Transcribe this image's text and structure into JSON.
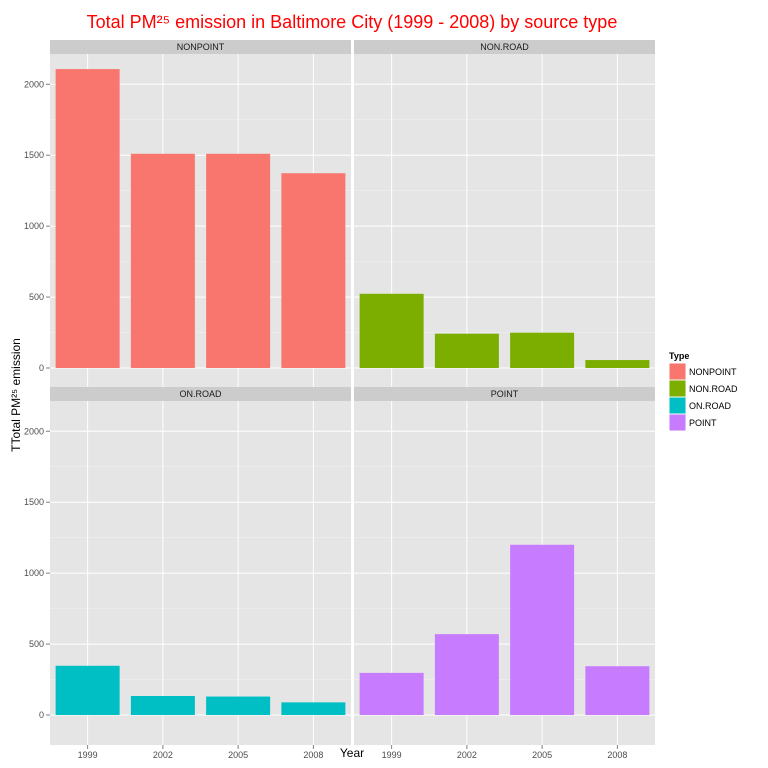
{
  "chart_data": {
    "type": "bar",
    "title": "Total PM²⁵ emission in Baltimore City (1999 - 2008) by source type",
    "title_color": "#ff0000",
    "xlabel": "Year",
    "ylabel": "TTotal PM²⁵ emission",
    "categories": [
      "1999",
      "2002",
      "2005",
      "2008"
    ],
    "ylim": [
      0,
      2250
    ],
    "yticks": [
      "0",
      "500",
      "1000",
      "1500",
      "2000"
    ],
    "grid": true,
    "facet_layout": "2x2",
    "legend": {
      "title": "Type",
      "placement": "right",
      "entries": [
        "NONPOINT",
        "NON.ROAD",
        "ON.ROAD",
        "POINT"
      ]
    },
    "series": [
      {
        "name": "NONPOINT",
        "color": "#f8766d",
        "values": [
          2107,
          1510,
          1510,
          1373
        ]
      },
      {
        "name": "NON.ROAD",
        "color": "#7cae00",
        "values": [
          523,
          242,
          249,
          56
        ]
      },
      {
        "name": "ON.ROAD",
        "color": "#00bfc4",
        "values": [
          347,
          134,
          130,
          89
        ]
      },
      {
        "name": "POINT",
        "color": "#c77cff",
        "values": [
          297,
          570,
          1200,
          344
        ]
      }
    ]
  }
}
